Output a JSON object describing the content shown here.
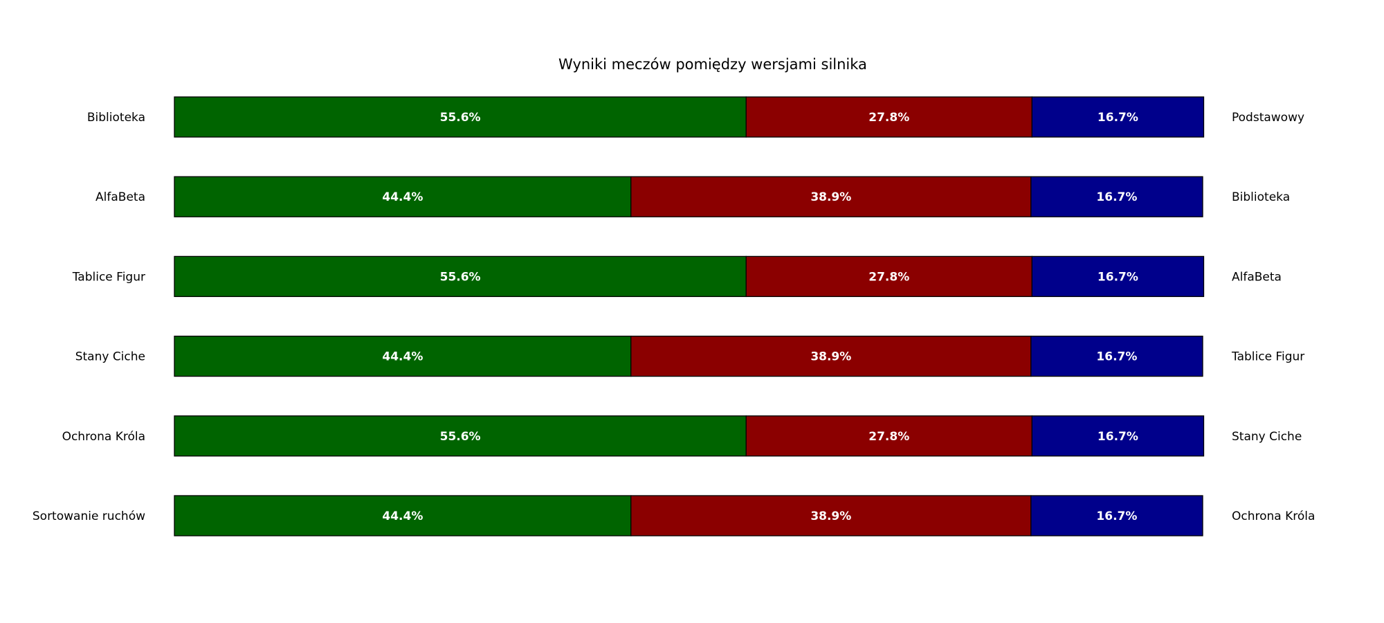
{
  "chart_data": {
    "type": "bar",
    "orientation": "horizontal",
    "stacked": true,
    "normalized": true,
    "title": "Wyniki meczów pomiędzy wersjami silnika",
    "xlabel": "",
    "ylabel": "",
    "xlim": [
      0,
      100
    ],
    "grid": false,
    "axes_visible": false,
    "value_label_format": "{v}%",
    "left_categories": [
      "Biblioteka",
      "AlfaBeta",
      "Tablice Figur",
      "Stany Ciche",
      "Ochrona Króla",
      "Sortowanie ruchów"
    ],
    "right_categories": [
      "Podstawowy",
      "Biblioteka",
      "AlfaBeta",
      "Tablice Figur",
      "Stany Ciche",
      "Ochrona Króla"
    ],
    "series": [
      {
        "color": "#006400",
        "values": [
          55.6,
          44.4,
          55.6,
          44.4,
          55.6,
          44.4
        ]
      },
      {
        "color": "#8b0000",
        "values": [
          27.8,
          38.9,
          27.8,
          38.9,
          27.8,
          38.9
        ]
      },
      {
        "color": "#00008b",
        "values": [
          16.7,
          16.7,
          16.7,
          16.7,
          16.7,
          16.7
        ]
      }
    ]
  }
}
